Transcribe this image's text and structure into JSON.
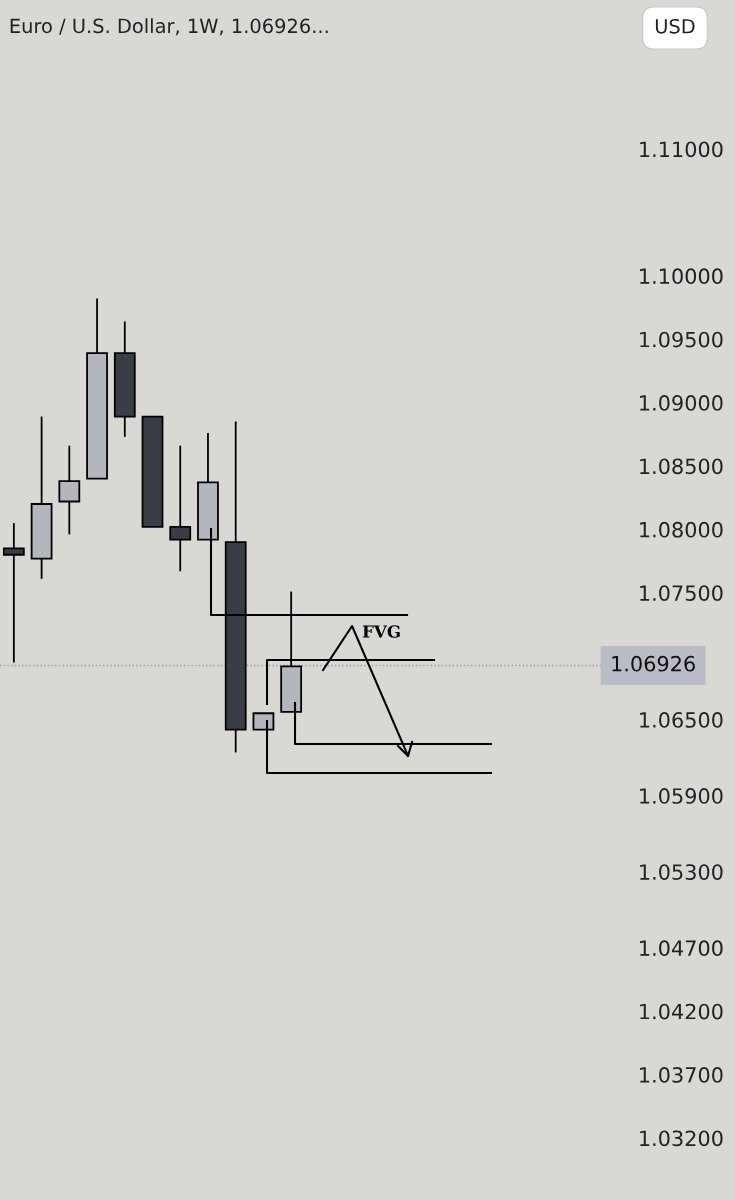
{
  "chart_data": {
    "type": "candlestick",
    "title": "Euro / U.S. Dollar, 1W, 1.06926...",
    "categories": [
      null,
      null,
      null,
      null,
      null,
      null,
      null,
      null,
      null,
      null,
      null,
      null,
      null,
      null,
      null,
      null,
      null,
      null,
      null,
      null,
      null,
      null
    ],
    "ohlc": [
      [
        1.0785,
        1.0805,
        1.0695,
        1.078
      ],
      [
        1.0777,
        1.0889,
        1.0761,
        1.082
      ],
      [
        1.0822,
        1.0866,
        1.0796,
        1.0838
      ],
      [
        1.084,
        1.0982,
        1.084,
        1.0939
      ],
      [
        1.0939,
        1.0964,
        1.0873,
        1.0889
      ],
      [
        1.0889,
        1.0889,
        1.0802,
        1.0802
      ],
      [
        1.0802,
        1.0866,
        1.0767,
        1.0792
      ],
      [
        1.0792,
        1.0876,
        1.0792,
        1.0837
      ],
      [
        1.079,
        1.0885,
        1.0624,
        1.0642
      ],
      [
        1.0642,
        1.0655,
        1.0642,
        1.0655
      ],
      [
        1.0656,
        1.0751,
        1.0656,
        1.0692
      ],
      null,
      null,
      null,
      null,
      null,
      null,
      null,
      null,
      null,
      null,
      null
    ],
    "colors": [
      "#3a3d46",
      "#b4b6bd",
      "#b4b6bd",
      "#b4b6bd",
      "#3a3d46",
      "#3a3d46",
      "#3a3d46",
      "#b4b6bd",
      "#3a3d46",
      "#b4b6bd",
      "#b4b6bd",
      null,
      null,
      null,
      null,
      null,
      null,
      null,
      null,
      null,
      null,
      null
    ],
    "ylim": [
      1.032,
      1.11
    ],
    "yticks": [
      {
        "value": 1.11,
        "label": "1.11000"
      },
      {
        "value": 1.1,
        "label": "1.10000"
      },
      {
        "value": 1.095,
        "label": "1.09500"
      },
      {
        "value": 1.09,
        "label": "1.09000"
      },
      {
        "value": 1.085,
        "label": "1.08500"
      },
      {
        "value": 1.08,
        "label": "1.08000"
      },
      {
        "value": 1.075,
        "label": "1.07500"
      },
      {
        "value": 1.065,
        "label": "1.06500"
      },
      {
        "value": 1.059,
        "label": "1.05900"
      },
      {
        "value": 1.053,
        "label": "1.05300"
      },
      {
        "value": 1.047,
        "label": "1.04700"
      },
      {
        "value": 1.042,
        "label": "1.04200"
      },
      {
        "value": 1.037,
        "label": "1.03700"
      },
      {
        "value": 1.032,
        "label": "1.03200"
      }
    ],
    "ref_lines": [
      {
        "axis": "y",
        "value": 1.06926,
        "label": "1.06926",
        "color": "#9a9a9a",
        "line_style": "dotted"
      }
    ],
    "annotations": [
      "USD",
      "FVG"
    ],
    "grid": false
  }
}
